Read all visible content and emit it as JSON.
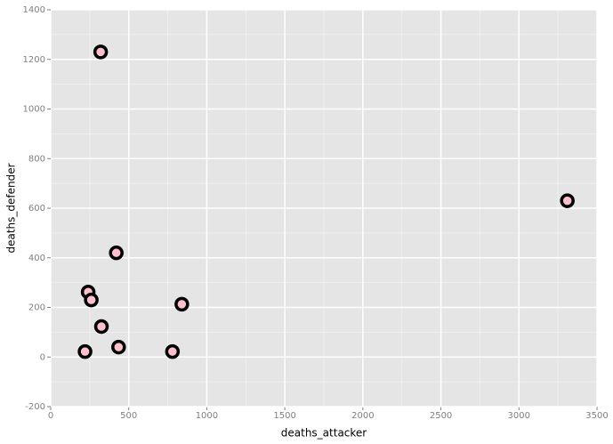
{
  "chart_data": {
    "type": "scatter",
    "x_label": "deaths_attacker",
    "y_label": "deaths_defender",
    "x": [
      320,
      3310,
      420,
      240,
      260,
      840,
      325,
      435,
      220,
      780
    ],
    "values": [
      1230,
      630,
      420,
      262,
      230,
      213,
      123,
      40,
      22,
      22
    ],
    "color": "#ffc0cb",
    "edge_color": "#000000",
    "background": "#e5e5e5",
    "grid_color": "#ffffff",
    "xlim": [
      0,
      3500
    ],
    "xticks": [
      0,
      500,
      1000,
      1500,
      2000,
      2500,
      3000,
      3500
    ],
    "ylim": [
      -200,
      1400
    ],
    "yticks": [
      -200,
      0,
      200,
      400,
      600,
      800,
      1000,
      1200,
      1400
    ],
    "grid": true
  }
}
